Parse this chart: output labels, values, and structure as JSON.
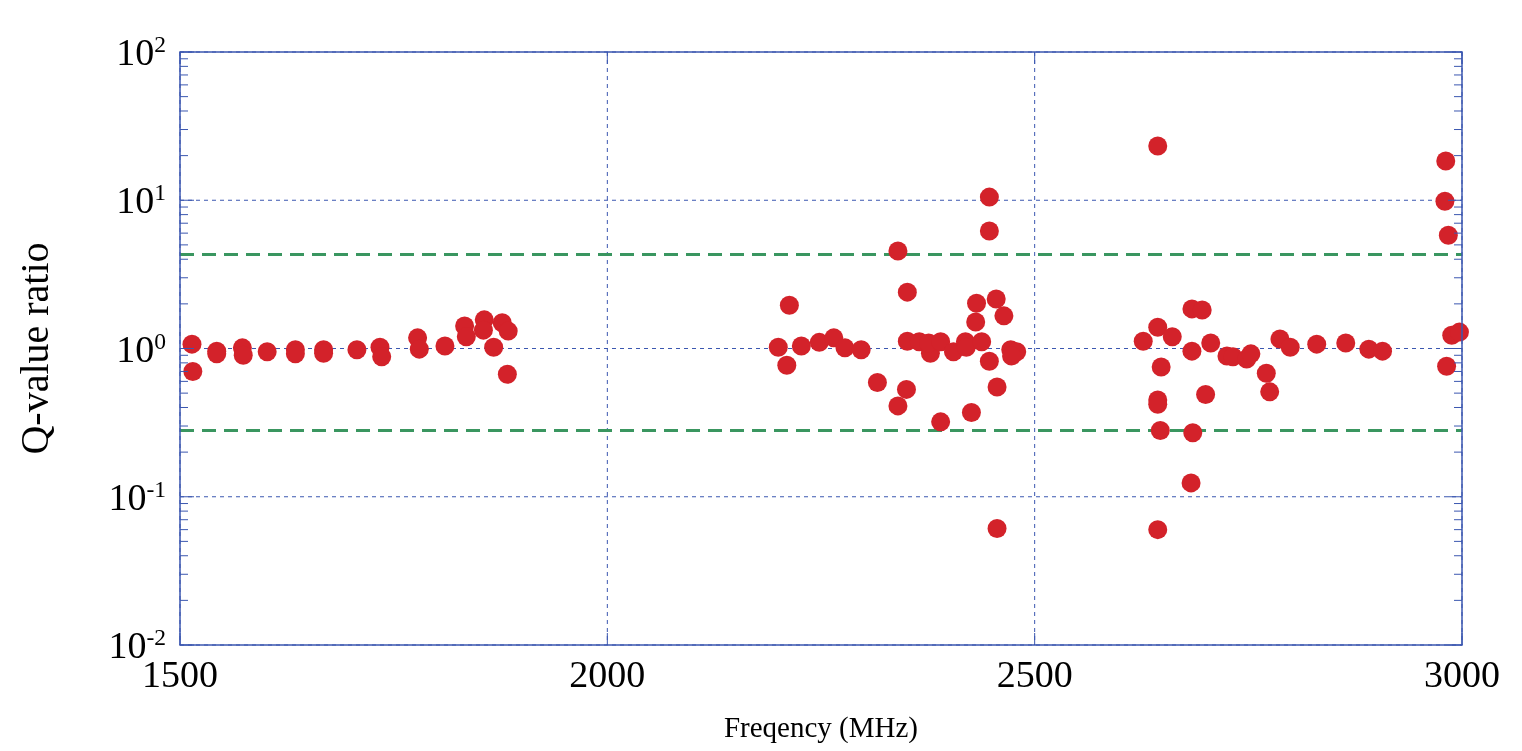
{
  "chart_data": {
    "type": "scatter",
    "xlabel": "Freqency (MHz)",
    "ylabel": "Q-value ratio",
    "log": "y",
    "grid": true,
    "marker": "circle",
    "xlim": [
      1500,
      3000
    ],
    "xticks": [
      1500,
      2000,
      2500,
      3000
    ],
    "ylim": [
      0.01,
      100
    ],
    "yticks": [
      {
        "value": 0.01,
        "label": "10$^{-2}$"
      },
      {
        "value": 0.1,
        "label": "10$^{-1}$"
      },
      {
        "value": 1,
        "label": "10$^{0}$"
      },
      {
        "value": 10,
        "label": "10$^{1}$"
      },
      {
        "value": 100,
        "label": "10$^{2}$"
      }
    ],
    "ref_lines": [
      {
        "axis": "y",
        "value": 4.3,
        "color": "#3a9660",
        "line_style": "dashed"
      },
      {
        "axis": "y",
        "value": 0.28,
        "color": "#3a9660",
        "line_style": "dashed"
      }
    ],
    "series": [
      {
        "color": "#d3222a",
        "x": [
          1514,
          1515,
          1543,
          1543,
          1573,
          1574,
          1602,
          1635,
          1635,
          1668,
          1668,
          1707,
          1734,
          1736,
          1778,
          1780,
          1810,
          1833,
          1835,
          1856,
          1855,
          1867,
          1877,
          1884,
          1883,
          2200,
          2210,
          2213,
          2227,
          2248,
          2265,
          2278,
          2297,
          2316,
          2340,
          2351,
          2350,
          2340,
          2351,
          2365,
          2378,
          2376,
          2390,
          2390,
          2405,
          2419,
          2420,
          2426,
          2432,
          2431,
          2438,
          2447,
          2447,
          2447,
          2455,
          2456,
          2456,
          2464,
          2472,
          2479,
          2473,
          2644,
          2981,
          2980,
          2984,
          2627,
          2644,
          2661,
          2684,
          2696,
          2684,
          2706,
          2648,
          2644,
          2644,
          2647,
          2685,
          2700,
          2683,
          2644,
          2725,
          2732,
          2748,
          2753,
          2771,
          2775,
          2787,
          2799,
          2830,
          2864,
          2891,
          2907,
          2982,
          2988,
          2997
        ],
        "values": [
          1.07,
          0.7,
          0.96,
          0.92,
          1.01,
          0.9,
          0.95,
          0.98,
          0.92,
          0.98,
          0.93,
          0.98,
          1.02,
          0.88,
          1.18,
          0.99,
          1.04,
          1.42,
          1.2,
          1.56,
          1.33,
          1.02,
          1.49,
          1.31,
          0.67,
          1.02,
          0.77,
          1.96,
          1.04,
          1.1,
          1.18,
          1.01,
          0.98,
          0.59,
          4.54,
          2.4,
          0.53,
          0.41,
          1.12,
          1.11,
          0.93,
          1.09,
          1.11,
          0.32,
          0.95,
          1.11,
          1.02,
          0.37,
          2.02,
          1.51,
          1.11,
          10.5,
          6.2,
          0.82,
          2.16,
          0.55,
          0.061,
          1.66,
          0.98,
          0.95,
          0.89,
          23.2,
          18.4,
          9.86,
          5.8,
          1.12,
          1.39,
          1.2,
          1.85,
          1.82,
          0.96,
          1.09,
          0.75,
          0.45,
          0.42,
          0.28,
          0.27,
          0.49,
          0.124,
          0.06,
          0.89,
          0.88,
          0.85,
          0.92,
          0.68,
          0.51,
          1.16,
          1.02,
          1.07,
          1.09,
          0.99,
          0.96,
          0.76,
          1.23,
          1.29
        ]
      }
    ]
  }
}
